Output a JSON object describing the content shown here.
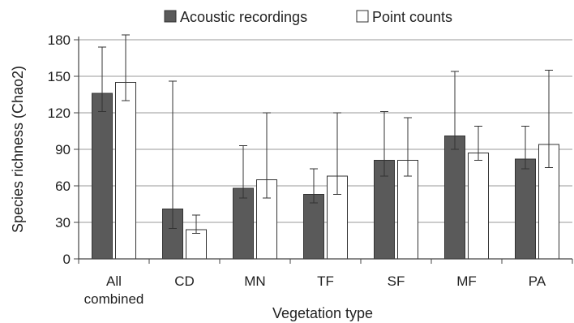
{
  "chart_data": {
    "type": "bar",
    "xlabel": "Vegetation type",
    "ylabel": "Species richness (Chao2)",
    "ylim": [
      0,
      180
    ],
    "yticks": [
      0,
      30,
      60,
      90,
      120,
      150,
      180
    ],
    "categories": [
      "All combined",
      "CD",
      "MN",
      "TF",
      "SF",
      "MF",
      "PA"
    ],
    "category_lines": [
      [
        "All",
        "combined"
      ],
      [
        "CD"
      ],
      [
        "MN"
      ],
      [
        "TF"
      ],
      [
        "SF"
      ],
      [
        "MF"
      ],
      [
        "PA"
      ]
    ],
    "grid": "horizontal",
    "legend_position": "top",
    "series": [
      {
        "name": "Acoustic recordings",
        "color": "#5a5a5a",
        "values": [
          136,
          41,
          58,
          53,
          81,
          101,
          82
        ],
        "error_low": [
          121,
          25,
          50,
          46,
          68,
          90,
          74
        ],
        "error_high": [
          174,
          146,
          93,
          74,
          121,
          154,
          109
        ]
      },
      {
        "name": "Point counts",
        "color": "#ffffff",
        "values": [
          145,
          24,
          65,
          68,
          81,
          87,
          94
        ],
        "error_low": [
          130,
          21,
          50,
          53,
          68,
          81,
          75
        ],
        "error_high": [
          184,
          36,
          120,
          120,
          116,
          109,
          155
        ]
      }
    ]
  }
}
